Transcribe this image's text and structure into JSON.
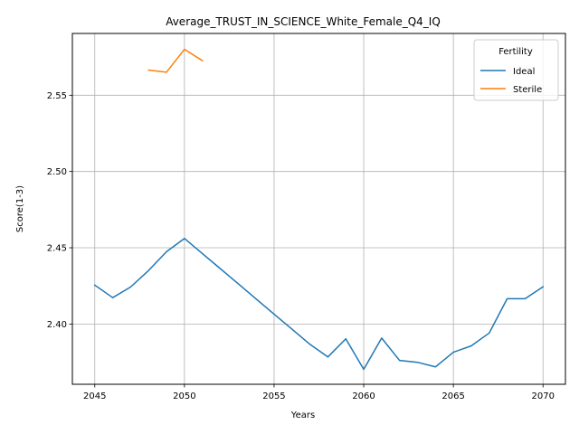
{
  "chart_data": {
    "type": "line",
    "title": "Average_TRUST_IN_SCIENCE_White_Female_Q4_IQ",
    "xlabel": "Years",
    "ylabel": "Score(1-3)",
    "xlim": [
      2043.75,
      2071.25
    ],
    "ylim": [
      2.3605,
      2.5905
    ],
    "x_ticks": [
      2045,
      2050,
      2055,
      2060,
      2065,
      2070
    ],
    "y_ticks": [
      2.4,
      2.45,
      2.5,
      2.55
    ],
    "x_tick_labels": [
      "2045",
      "2050",
      "2055",
      "2060",
      "2065",
      "2070"
    ],
    "y_tick_labels": [
      "2.40",
      "2.45",
      "2.50",
      "2.55"
    ],
    "grid": true,
    "legend": {
      "title": "Fertility",
      "placement": "top-right"
    },
    "series": [
      {
        "name": "Ideal",
        "color": "#1f77b4",
        "x": [
          2045,
          2046,
          2047,
          2048,
          2049,
          2050,
          2051,
          2052,
          2053,
          2054,
          2055,
          2056,
          2057,
          2058,
          2059,
          2060,
          2061,
          2062,
          2063,
          2064,
          2065,
          2066,
          2067,
          2068,
          2069,
          2070
        ],
        "y": [
          2.4255,
          2.4173,
          2.4243,
          2.4351,
          2.4474,
          2.4561,
          2.4462,
          2.4363,
          2.4264,
          2.4164,
          2.4065,
          2.3966,
          2.3867,
          2.3784,
          2.3903,
          2.3703,
          2.3908,
          2.3761,
          2.3749,
          2.3719,
          2.3815,
          2.3857,
          2.3941,
          2.4166,
          2.4166,
          2.4244
        ]
      },
      {
        "name": "Sterile",
        "color": "#ff7f0e",
        "x": [
          2048,
          2049,
          2050,
          2051
        ],
        "y": [
          2.5665,
          2.5651,
          2.5801,
          2.5727
        ]
      }
    ]
  }
}
